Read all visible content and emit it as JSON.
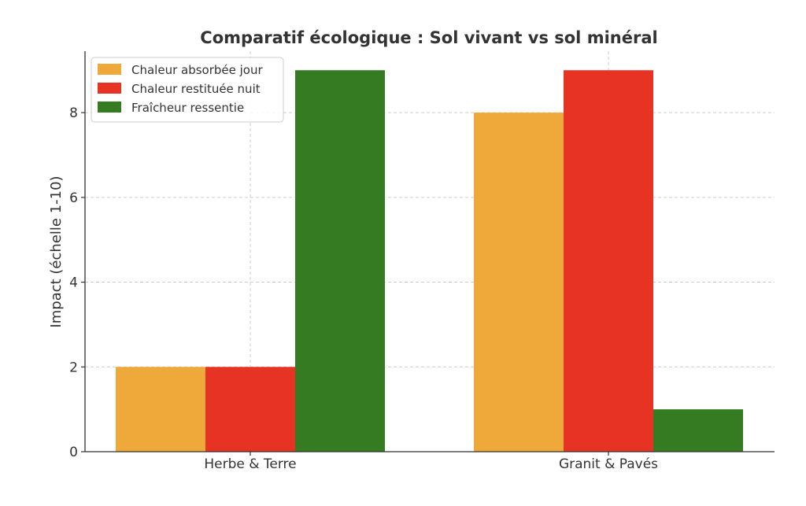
{
  "chart_data": {
    "type": "bar",
    "title": "Comparatif écologique : Sol vivant vs sol minéral",
    "xlabel": "",
    "ylabel": "Impact (échelle 1-10)",
    "categories": [
      "Herbe & Terre",
      "Granit & Pavés"
    ],
    "series": [
      {
        "name": "Chaleur absorbée jour",
        "color": "#EFA83A",
        "values": [
          2,
          8
        ]
      },
      {
        "name": "Chaleur restituée nuit",
        "color": "#E63323",
        "values": [
          2,
          9
        ]
      },
      {
        "name": "Fraîcheur ressentie",
        "color": "#347B22",
        "values": [
          9,
          1
        ]
      }
    ],
    "ylim": [
      0,
      9.45
    ],
    "yticks": [
      0,
      2,
      4,
      6,
      8
    ],
    "grid": true,
    "legend_position": "top-left"
  }
}
